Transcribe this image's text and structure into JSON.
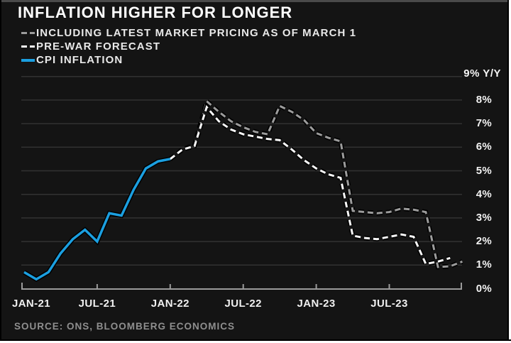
{
  "title": "INFLATION HIGHER FOR LONGER",
  "source": "SOURCE: ONS, BLOOMBERG ECONOMICS",
  "y_axis": {
    "unit_label": "9% Y/Y"
  },
  "legend": [
    {
      "label": "INCLUDING LATEST MARKET PRICING AS OF MARCH 1",
      "style": "dashed",
      "color": "#9c9c9c"
    },
    {
      "label": "PRE-WAR FORECAST",
      "style": "dashed",
      "color": "#f8f8f8"
    },
    {
      "label": "CPI INFLATION",
      "style": "solid",
      "color": "#1b9fe0"
    }
  ],
  "colors": {
    "background": "#141414",
    "gridline": "#323232",
    "axis": "#9b9b9b",
    "market_pricing_line": "#9c9c9c",
    "pre_war_line": "#f8f8f8",
    "cpi_line": "#1b9fe0"
  },
  "chart_data": {
    "type": "line",
    "title": "INFLATION HIGHER FOR LONGER",
    "x_unit": "month",
    "x_range": [
      "JAN-21",
      "JAN-24"
    ],
    "ylim": [
      0,
      9
    ],
    "grid": "horizontal",
    "legend_position": "top-left",
    "y_gridline_values": [
      1,
      2,
      3,
      4,
      5,
      6,
      7,
      8,
      9
    ],
    "y_ticks": [
      {
        "label": "8%",
        "value": 8
      },
      {
        "label": "7%",
        "value": 7
      },
      {
        "label": "6%",
        "value": 6
      },
      {
        "label": "5%",
        "value": 5
      },
      {
        "label": "4%",
        "value": 4
      },
      {
        "label": "3%",
        "value": 3
      },
      {
        "label": "2%",
        "value": 2
      },
      {
        "label": "1%",
        "value": 1
      },
      {
        "label": "0%",
        "value": 0
      }
    ],
    "x_ticks": [
      {
        "label": "JAN-21",
        "month_index": 0
      },
      {
        "label": "JUL-21",
        "month_index": 6
      },
      {
        "label": "JAN-22",
        "month_index": 12
      },
      {
        "label": "JUL-22",
        "month_index": 18
      },
      {
        "label": "JAN-23",
        "month_index": 24
      },
      {
        "label": "JUL-23",
        "month_index": 30
      }
    ],
    "series": [
      {
        "name": "INCLUDING LATEST MARKET PRICING AS OF MARCH 1",
        "color": "#9c9c9c",
        "dashed": true,
        "width": 3,
        "start_month": "JAN-22",
        "start_month_index": 12,
        "values": [
          5.5,
          5.9,
          6.1,
          7.95,
          7.5,
          7.1,
          6.85,
          6.65,
          6.55,
          7.75,
          7.5,
          7.15,
          6.6,
          6.4,
          6.25,
          3.3,
          3.25,
          3.2,
          3.25,
          3.4,
          3.35,
          3.25,
          0.92,
          0.95,
          1.15
        ]
      },
      {
        "name": "PRE-WAR FORECAST",
        "color": "#f8f8f8",
        "dashed": true,
        "width": 3,
        "start_month": "JAN-22",
        "start_month_index": 12,
        "values": [
          5.5,
          5.9,
          6.05,
          7.7,
          7.1,
          6.75,
          6.55,
          6.45,
          6.35,
          6.3,
          5.9,
          5.45,
          5.1,
          4.85,
          4.7,
          2.25,
          2.15,
          2.1,
          2.2,
          2.3,
          2.2,
          1.05,
          1.15,
          1.3
        ]
      },
      {
        "name": "CPI INFLATION",
        "color": "#1b9fe0",
        "dashed": false,
        "width": 3.5,
        "start_month": "JAN-21",
        "start_month_index": 0,
        "values": [
          0.7,
          0.4,
          0.7,
          1.5,
          2.1,
          2.5,
          2.0,
          3.2,
          3.1,
          4.2,
          5.1,
          5.4,
          5.5
        ]
      }
    ]
  }
}
